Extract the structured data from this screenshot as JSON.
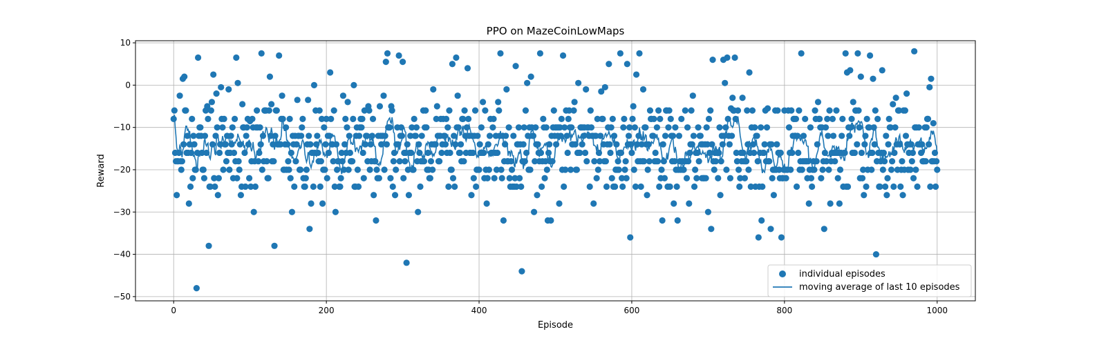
{
  "chart_data": {
    "type": "scatter",
    "title": "PPO on MazeCoinLowMaps",
    "xlabel": "Episode",
    "ylabel": "Reward",
    "xlim": [
      -50,
      1050
    ],
    "ylim": [
      -51,
      10.5
    ],
    "xticks": [
      0,
      200,
      400,
      600,
      800,
      1000
    ],
    "yticks": [
      -50,
      -40,
      -30,
      -20,
      -10,
      0,
      10
    ],
    "grid": true,
    "legend_position": "lower-right",
    "colors": {
      "series": "#1f77b4"
    },
    "series": [
      {
        "name": "individual episodes",
        "kind": "scatter",
        "x": [],
        "y": []
      },
      {
        "name": "moving average of last 10 episodes",
        "kind": "line",
        "x": [],
        "y": []
      }
    ],
    "anchor_points": [
      [
        0,
        -8
      ],
      [
        2,
        -16
      ],
      [
        4,
        -26
      ],
      [
        6,
        -18
      ],
      [
        8,
        -2.5
      ],
      [
        10,
        -20
      ],
      [
        12,
        1.5
      ],
      [
        14,
        2
      ],
      [
        16,
        -6
      ],
      [
        18,
        -12
      ],
      [
        20,
        -28
      ],
      [
        22,
        -24
      ],
      [
        24,
        -8
      ],
      [
        28,
        -20
      ],
      [
        30,
        -48
      ],
      [
        32,
        6.5
      ],
      [
        35,
        -10
      ],
      [
        40,
        -22
      ],
      [
        44,
        -5
      ],
      [
        46,
        -38
      ],
      [
        50,
        -4
      ],
      [
        52,
        2.5
      ],
      [
        56,
        -2
      ],
      [
        58,
        -26
      ],
      [
        62,
        -0.5
      ],
      [
        66,
        -8
      ],
      [
        70,
        -12
      ],
      [
        72,
        -1
      ],
      [
        76,
        -14
      ],
      [
        82,
        6.5
      ],
      [
        84,
        0.5
      ],
      [
        88,
        -26
      ],
      [
        90,
        -4.5
      ],
      [
        95,
        -12
      ],
      [
        100,
        -8.5
      ],
      [
        105,
        -30
      ],
      [
        110,
        -10
      ],
      [
        115,
        7.5
      ],
      [
        120,
        -6
      ],
      [
        124,
        -22
      ],
      [
        126,
        2
      ],
      [
        128,
        -4.5
      ],
      [
        132,
        -38
      ],
      [
        138,
        7
      ],
      [
        142,
        -2.5
      ],
      [
        148,
        -20
      ],
      [
        155,
        -30
      ],
      [
        158,
        -24
      ],
      [
        162,
        -3.5
      ],
      [
        168,
        -10
      ],
      [
        172,
        -24
      ],
      [
        176,
        -3.5
      ],
      [
        178,
        -34
      ],
      [
        180,
        -28
      ],
      [
        184,
        0
      ],
      [
        190,
        -18
      ],
      [
        195,
        -28
      ],
      [
        200,
        -8
      ],
      [
        205,
        3
      ],
      [
        210,
        -6
      ],
      [
        212,
        -30
      ],
      [
        218,
        -24
      ],
      [
        222,
        -2.5
      ],
      [
        228,
        -4
      ],
      [
        232,
        -18
      ],
      [
        236,
        0
      ],
      [
        240,
        -10
      ],
      [
        245,
        -8
      ],
      [
        250,
        -6
      ],
      [
        255,
        -5
      ],
      [
        262,
        -26
      ],
      [
        265,
        -32
      ],
      [
        270,
        -5
      ],
      [
        275,
        -2.5
      ],
      [
        278,
        5.5
      ],
      [
        280,
        7.5
      ],
      [
        285,
        -5
      ],
      [
        290,
        -26
      ],
      [
        295,
        7
      ],
      [
        300,
        5.5
      ],
      [
        305,
        -42
      ],
      [
        308,
        -26
      ],
      [
        315,
        -8
      ],
      [
        320,
        -30
      ],
      [
        325,
        -12
      ],
      [
        330,
        -6
      ],
      [
        335,
        -22
      ],
      [
        340,
        -1
      ],
      [
        345,
        -5
      ],
      [
        350,
        -8
      ],
      [
        355,
        -12
      ],
      [
        360,
        -24
      ],
      [
        365,
        5
      ],
      [
        370,
        6.5
      ],
      [
        372,
        -2.5
      ],
      [
        378,
        -8
      ],
      [
        385,
        4
      ],
      [
        390,
        -26
      ],
      [
        395,
        -6
      ],
      [
        400,
        -20
      ],
      [
        405,
        -4
      ],
      [
        410,
        -28
      ],
      [
        415,
        -8
      ],
      [
        420,
        -22
      ],
      [
        425,
        -4
      ],
      [
        428,
        7.5
      ],
      [
        432,
        -32
      ],
      [
        436,
        -1
      ],
      [
        440,
        -22
      ],
      [
        444,
        -24
      ],
      [
        448,
        4.5
      ],
      [
        452,
        -10
      ],
      [
        456,
        -44
      ],
      [
        460,
        -18
      ],
      [
        463,
        0.5
      ],
      [
        468,
        2
      ],
      [
        472,
        -30
      ],
      [
        476,
        -26
      ],
      [
        480,
        7.5
      ],
      [
        486,
        -22
      ],
      [
        490,
        -32
      ],
      [
        494,
        -32
      ],
      [
        500,
        -10
      ],
      [
        505,
        -28
      ],
      [
        510,
        7
      ],
      [
        515,
        -12
      ],
      [
        520,
        -20
      ],
      [
        525,
        -4
      ],
      [
        530,
        0.5
      ],
      [
        535,
        -14
      ],
      [
        540,
        -1
      ],
      [
        545,
        -24
      ],
      [
        550,
        -28
      ],
      [
        555,
        -8
      ],
      [
        560,
        -1.5
      ],
      [
        565,
        -0.5
      ],
      [
        570,
        5
      ],
      [
        575,
        -8
      ],
      [
        580,
        -14
      ],
      [
        585,
        7.5
      ],
      [
        590,
        -8
      ],
      [
        594,
        5
      ],
      [
        598,
        -36
      ],
      [
        602,
        -5
      ],
      [
        606,
        2.5
      ],
      [
        610,
        7.5
      ],
      [
        615,
        -1
      ],
      [
        620,
        -26
      ],
      [
        625,
        -8
      ],
      [
        630,
        -18
      ],
      [
        635,
        -6
      ],
      [
        640,
        -32
      ],
      [
        645,
        -6
      ],
      [
        650,
        -24
      ],
      [
        655,
        -28
      ],
      [
        660,
        -32
      ],
      [
        665,
        -8
      ],
      [
        670,
        -6
      ],
      [
        675,
        -28
      ],
      [
        680,
        -2.5
      ],
      [
        685,
        -22
      ],
      [
        690,
        -12
      ],
      [
        695,
        -22
      ],
      [
        700,
        -30
      ],
      [
        704,
        -34
      ],
      [
        706,
        6
      ],
      [
        712,
        -16
      ],
      [
        716,
        -26
      ],
      [
        720,
        6
      ],
      [
        722,
        0.5
      ],
      [
        725,
        6.5
      ],
      [
        730,
        -5.5
      ],
      [
        732,
        -3
      ],
      [
        735,
        6.5
      ],
      [
        740,
        -20
      ],
      [
        745,
        -3
      ],
      [
        750,
        -18
      ],
      [
        754,
        3
      ],
      [
        758,
        -6
      ],
      [
        762,
        -24
      ],
      [
        766,
        -36
      ],
      [
        770,
        -32
      ],
      [
        774,
        -14
      ],
      [
        778,
        -5.5
      ],
      [
        782,
        -34
      ],
      [
        786,
        -26
      ],
      [
        790,
        -14
      ],
      [
        796,
        -36
      ],
      [
        802,
        -22
      ],
      [
        806,
        -10
      ],
      [
        812,
        -8
      ],
      [
        818,
        -16
      ],
      [
        822,
        7.5
      ],
      [
        826,
        -18
      ],
      [
        832,
        -28
      ],
      [
        836,
        -24
      ],
      [
        840,
        -6
      ],
      [
        844,
        -4
      ],
      [
        848,
        -22
      ],
      [
        852,
        -34
      ],
      [
        856,
        -8
      ],
      [
        860,
        -28
      ],
      [
        864,
        -12
      ],
      [
        868,
        -6
      ],
      [
        872,
        -28
      ],
      [
        876,
        -8
      ],
      [
        880,
        7.5
      ],
      [
        882,
        3
      ],
      [
        886,
        3.5
      ],
      [
        890,
        -4
      ],
      [
        894,
        -6
      ],
      [
        896,
        7.5
      ],
      [
        900,
        2
      ],
      [
        904,
        -26
      ],
      [
        908,
        -8
      ],
      [
        912,
        7
      ],
      [
        916,
        1.5
      ],
      [
        920,
        -40
      ],
      [
        924,
        -24
      ],
      [
        928,
        3.5
      ],
      [
        934,
        -26
      ],
      [
        938,
        -10
      ],
      [
        942,
        -4.5
      ],
      [
        946,
        -3
      ],
      [
        950,
        -6
      ],
      [
        955,
        -26
      ],
      [
        960,
        -2
      ],
      [
        964,
        -14
      ],
      [
        968,
        -16
      ],
      [
        970,
        8
      ],
      [
        974,
        -24
      ],
      [
        978,
        -14
      ],
      [
        982,
        -18
      ],
      [
        986,
        -10
      ],
      [
        990,
        -0.5
      ],
      [
        992,
        1.5
      ],
      [
        995,
        -9
      ],
      [
        998,
        -24
      ],
      [
        1000,
        -20
      ]
    ]
  },
  "legend": {
    "scatter_label": "individual episodes",
    "line_label": "moving average of last 10 episodes"
  }
}
